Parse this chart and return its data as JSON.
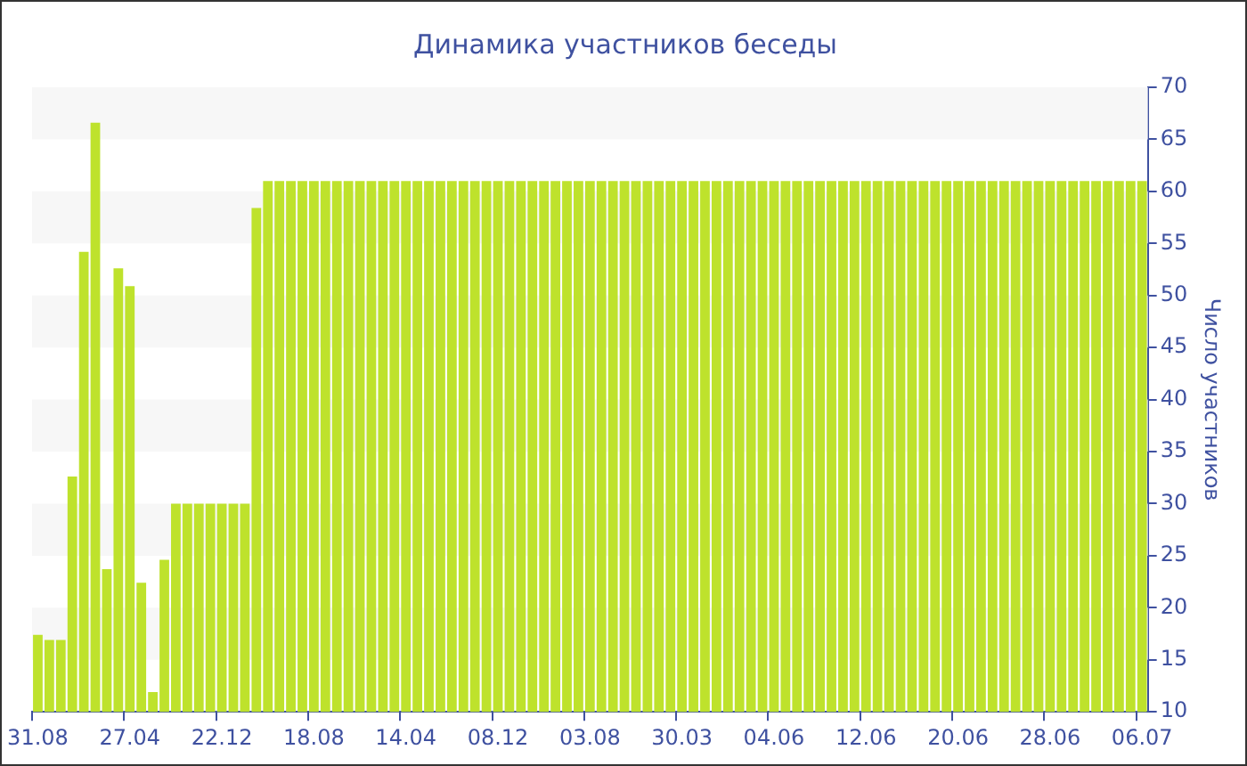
{
  "chart_data": {
    "type": "bar",
    "title": "Динамика участников беседы",
    "ylabel": "Число участников",
    "categories": [
      "31.08",
      null,
      null,
      null,
      null,
      null,
      null,
      null,
      "27.04",
      null,
      null,
      null,
      null,
      null,
      null,
      null,
      "22.12",
      null,
      null,
      null,
      null,
      null,
      null,
      null,
      "18.08",
      null,
      null,
      null,
      null,
      null,
      null,
      null,
      "14.04",
      null,
      null,
      null,
      null,
      null,
      null,
      null,
      "08.12",
      null,
      null,
      null,
      null,
      null,
      null,
      null,
      "03.08",
      null,
      null,
      null,
      null,
      null,
      null,
      null,
      "30.03",
      null,
      null,
      null,
      null,
      null,
      null,
      null,
      "04.06",
      null,
      null,
      null,
      null,
      null,
      null,
      null,
      "12.06",
      null,
      null,
      null,
      null,
      null,
      null,
      null,
      "20.06",
      null,
      null,
      null,
      null,
      null,
      null,
      null,
      "28.06",
      null,
      null,
      null,
      null,
      null,
      null,
      null,
      "06.07"
    ],
    "values": [
      17.4,
      16.9,
      16.9,
      32.6,
      54.2,
      66.6,
      23.7,
      52.6,
      50.9,
      22.4,
      11.9,
      24.6,
      30,
      30,
      30,
      30,
      30,
      30,
      30,
      58.4,
      61,
      61,
      61,
      61,
      61,
      61,
      61,
      61,
      61,
      61,
      61,
      61,
      61,
      61,
      61,
      61,
      61,
      61,
      61,
      61,
      61,
      61,
      61,
      61,
      61,
      61,
      61,
      61,
      61,
      61,
      61,
      61,
      61,
      61,
      61,
      61,
      61,
      61,
      61,
      61,
      61,
      61,
      61,
      61,
      61,
      61,
      61,
      61,
      61,
      61,
      61,
      61,
      61,
      61,
      61,
      61,
      61,
      61,
      61,
      61,
      61,
      61,
      61,
      61,
      61,
      61,
      61,
      61,
      61,
      61,
      61,
      61,
      61,
      61,
      61,
      61,
      61
    ],
    "color": "#bee22c",
    "ylim": [
      10,
      70
    ],
    "yticks": [
      10,
      15,
      20,
      25,
      30,
      35,
      40,
      45,
      50,
      55,
      60,
      65,
      70
    ],
    "legend": false
  }
}
